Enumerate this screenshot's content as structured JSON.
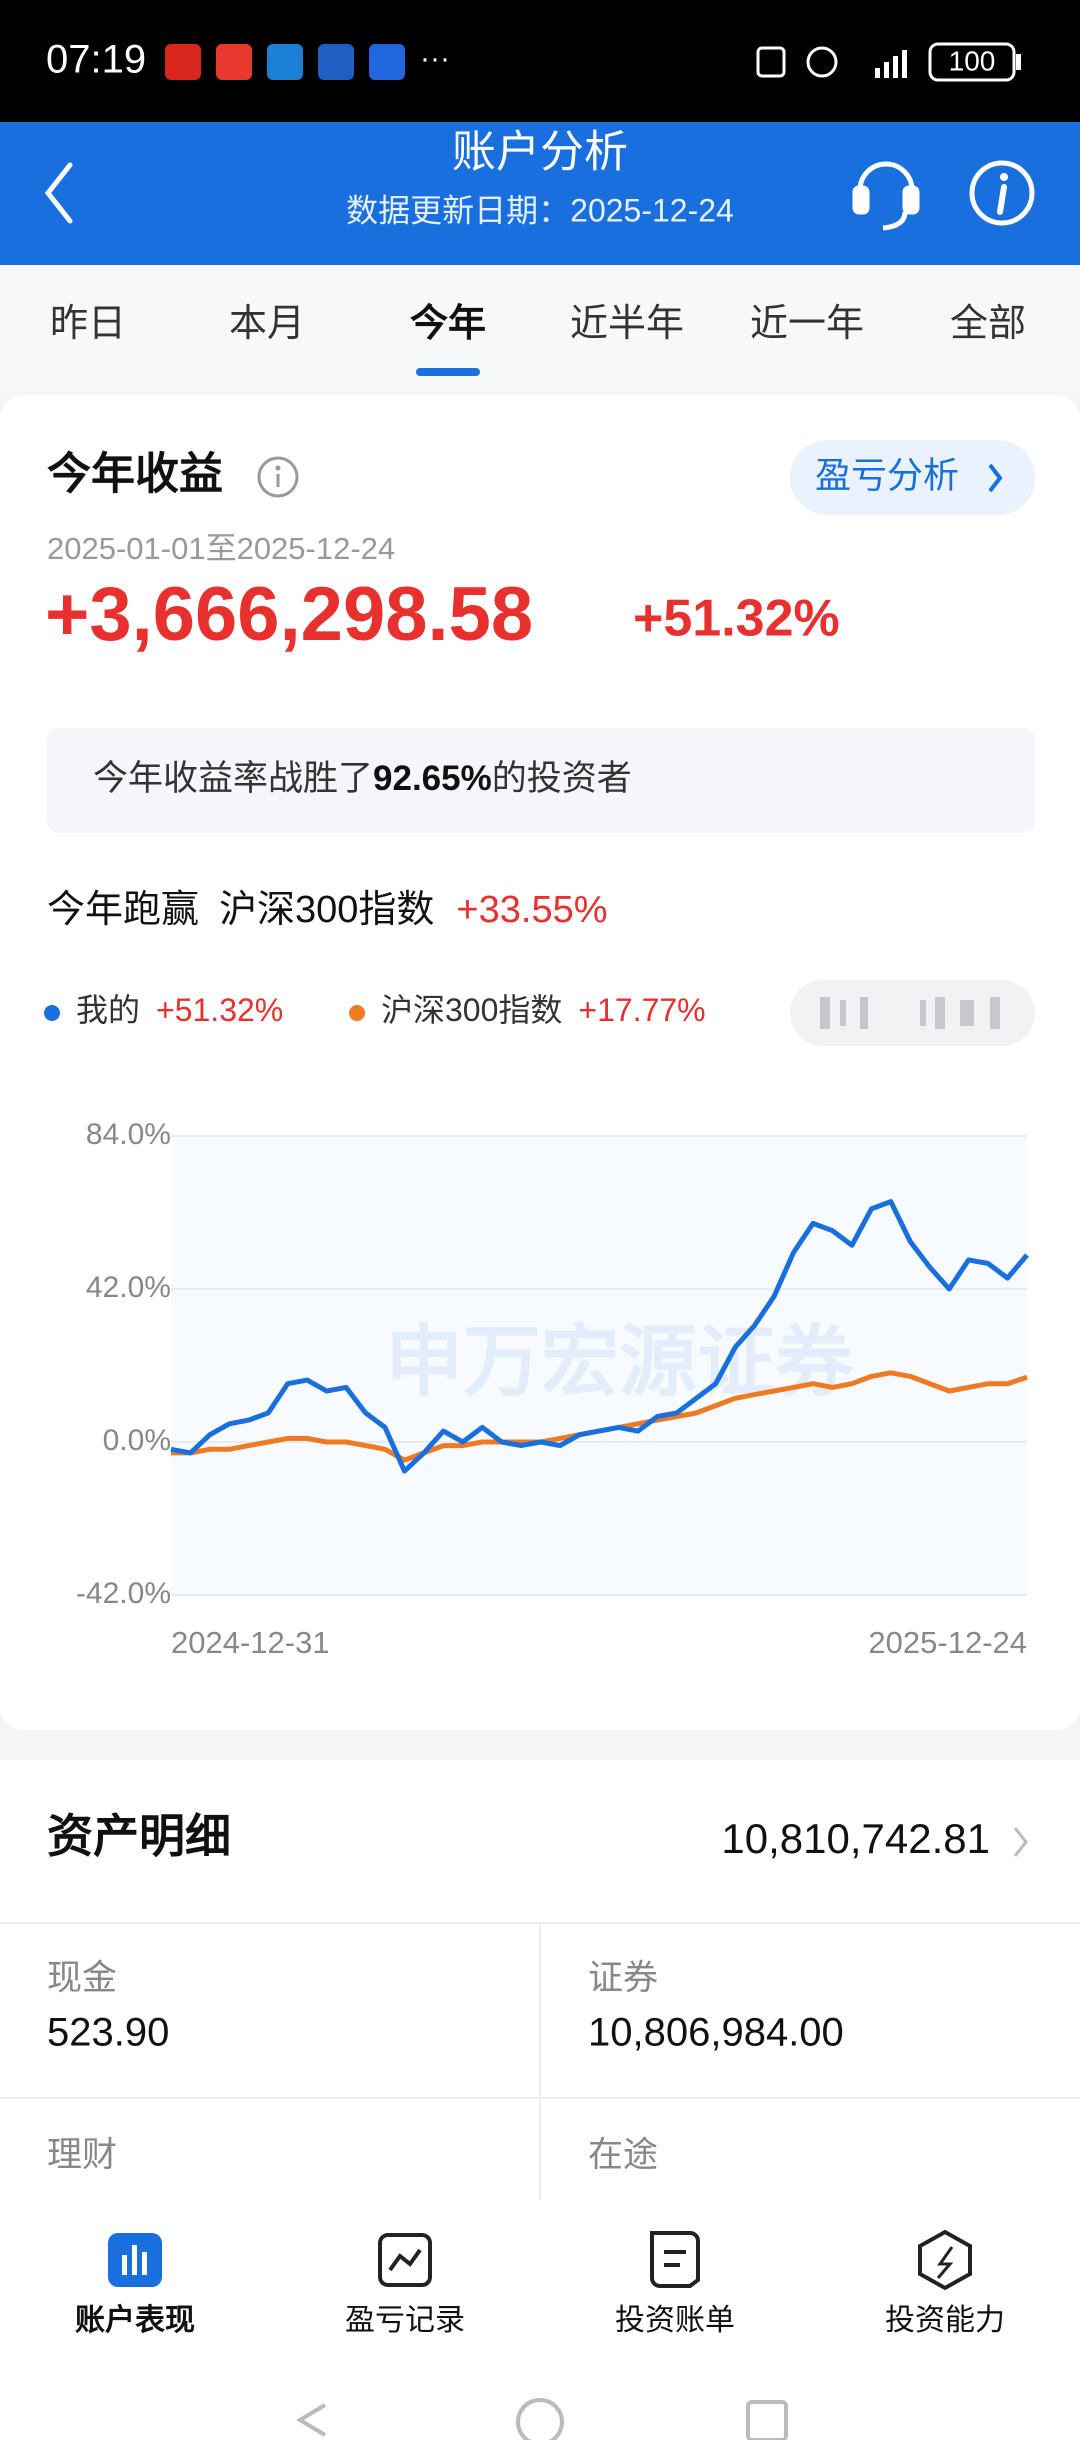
{
  "status_bar": {
    "time": "07:19",
    "battery": "100"
  },
  "header": {
    "title": "账户分析",
    "subtitle": "数据更新日期：2025-12-24"
  },
  "tabs": {
    "items": [
      "昨日",
      "本月",
      "今年",
      "近半年",
      "近一年",
      "全部"
    ],
    "active": 2
  },
  "summary": {
    "title": "今年收益",
    "button": "盈亏分析",
    "date_range": "2025-01-01至2025-12-24",
    "profit": "+3,666,298.58",
    "return": "+51.32%",
    "beat": {
      "prefix": "今年收益率战胜了",
      "value": "92.65%",
      "suffix": "的投资者"
    }
  },
  "compare": {
    "title": "今年跑赢",
    "index": "沪深300指数",
    "excess": "+33.55%"
  },
  "chart_data": {
    "type": "line",
    "categories": [
      "2024-12-31",
      null,
      null,
      null,
      null,
      null,
      null,
      null,
      null,
      null,
      null,
      null,
      null,
      null,
      null,
      null,
      null,
      null,
      null,
      null,
      null,
      null,
      null,
      null,
      null,
      null,
      null,
      null,
      null,
      null,
      null,
      null,
      null,
      null,
      null,
      null,
      null,
      null,
      null,
      null,
      null,
      null,
      null,
      null,
      "2025-12-24"
    ],
    "series": [
      {
        "name": "我的",
        "legend_value": "+51.32%",
        "color": "#1a6fdf",
        "values": [
          -2,
          -3,
          2,
          5,
          6,
          8,
          16,
          17,
          14,
          15,
          8,
          4,
          -8,
          -3,
          3,
          0,
          4,
          0,
          -1,
          0,
          -1,
          2,
          3,
          4,
          3,
          7,
          8,
          12,
          16,
          26,
          32,
          40,
          52,
          60,
          58,
          54,
          64,
          66,
          55,
          48,
          42,
          50,
          49,
          45,
          51.32
        ]
      },
      {
        "name": "沪深300指数",
        "legend_value": "+17.77%",
        "color": "#f07a22",
        "values": [
          -3,
          -3,
          -2,
          -2,
          -1,
          0,
          1,
          1,
          0,
          0,
          -1,
          -2,
          -5,
          -3,
          -1,
          -1,
          0,
          0,
          0,
          0,
          1,
          2,
          3,
          4,
          5,
          6,
          7,
          8,
          10,
          12,
          13,
          14,
          15,
          16,
          15,
          16,
          18,
          19,
          18,
          16,
          14,
          15,
          16,
          16,
          17.77
        ]
      }
    ],
    "ylim": [
      -42,
      84
    ],
    "yticks": [
      {
        "value": -42,
        "label": "-42.0%"
      },
      {
        "value": 0,
        "label": "0.0%"
      },
      {
        "value": 42,
        "label": "42.0%"
      },
      {
        "value": 84,
        "label": "84.0%"
      }
    ],
    "grid": true,
    "watermark": "申万宏源证券"
  },
  "assets": {
    "title": "资产明细",
    "total": "10,810,742.81",
    "items": [
      {
        "label": "现金",
        "value": "523.90"
      },
      {
        "label": "证券",
        "value": "10,806,984.00"
      },
      {
        "label": "理财"
      },
      {
        "label": "在途"
      }
    ]
  },
  "nav": [
    "账户表现",
    "盈亏记录",
    "投资账单",
    "投资能力"
  ]
}
